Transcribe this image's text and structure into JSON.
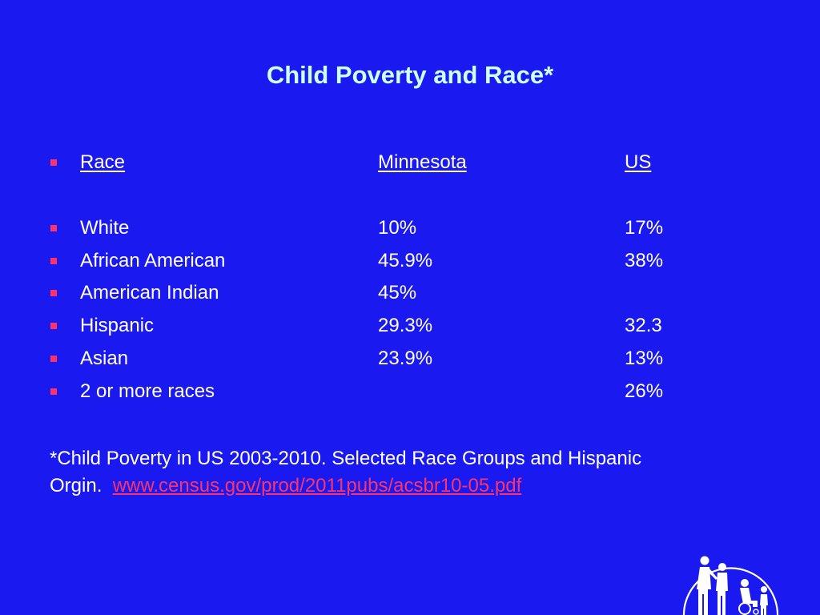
{
  "slide": {
    "title": "Child Poverty and Race*"
  },
  "table": {
    "headers": {
      "race": "Race",
      "minnesota": "Minnesota",
      "us": "US"
    },
    "rows": [
      {
        "race": "White",
        "minnesota": "10%",
        "us": "17%"
      },
      {
        "race": "African American",
        "minnesota": "45.9%",
        "us": "38%"
      },
      {
        "race": "American Indian",
        "minnesota": "45%",
        "us": ""
      },
      {
        "race": "Hispanic",
        "minnesota": "29.3%",
        "us": "32.3"
      },
      {
        "race": "Asian",
        "minnesota": "23.9%",
        "us": "13%"
      },
      {
        "race": "2 or more races",
        "minnesota": "",
        "us": "26%"
      }
    ]
  },
  "footnote": {
    "line1": "*Child Poverty in US 2003-2010. Selected Race Groups and Hispanic",
    "line2_prefix": "Orgin.  ",
    "link_text": "www.census.gov/prod/2011pubs/acsbr10-05.pdf"
  },
  "colors": {
    "background": "#1A1AF0",
    "title": "#CCFFFF",
    "text": "#FFFFFF",
    "bullet": "#FF3366",
    "link": "#FF3366"
  },
  "icons": {
    "logo": "family-silhouette-logo-icon"
  }
}
